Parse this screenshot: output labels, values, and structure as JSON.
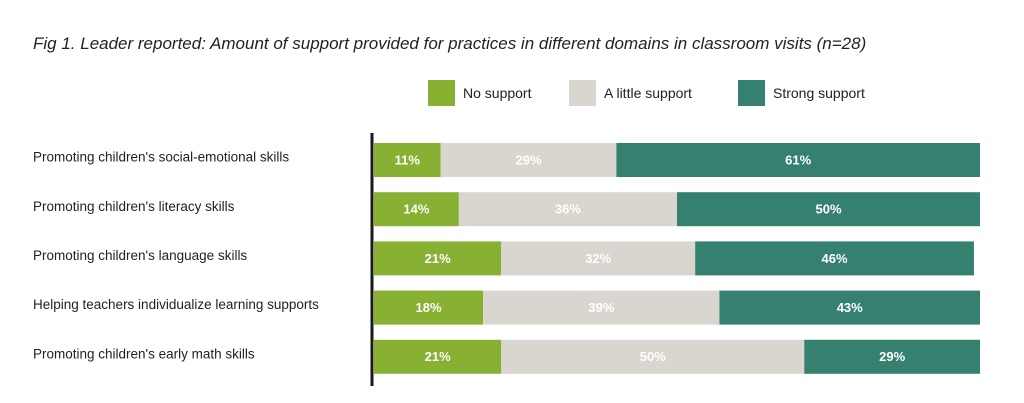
{
  "colors": {
    "no_support": "#88b033",
    "a_little_support": "#d8d6cf",
    "strong_support": "#36806f",
    "axis": "#1a1a1a",
    "label_text": "#222222"
  },
  "chart_data": {
    "type": "bar",
    "orientation": "horizontal",
    "stacked": true,
    "title": "Fig 1. Leader reported: Amount of support provided for practices in different domains in classroom visits (n=28)",
    "xlim": [
      0,
      100
    ],
    "value_suffix": "%",
    "legend_placement": "top",
    "grid": false,
    "categories": [
      "Promoting children's social-emotional skills",
      "Promoting children's literacy skills",
      "Promoting children's language skills",
      "Helping teachers individualize learning supports",
      "Promoting children's early math skills"
    ],
    "series": [
      {
        "name": "No support",
        "color_key": "no_support",
        "values": [
          11,
          14,
          21,
          18,
          21
        ]
      },
      {
        "name": "A little support",
        "color_key": "a_little_support",
        "values": [
          29,
          36,
          32,
          39,
          50
        ]
      },
      {
        "name": "Strong support",
        "color_key": "strong_support",
        "values": [
          61,
          50,
          46,
          43,
          29
        ]
      }
    ]
  }
}
